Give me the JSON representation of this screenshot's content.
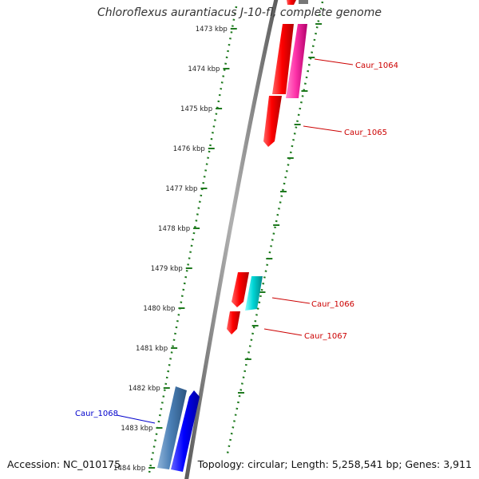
{
  "title": "Chloroflexus aurantiacus J-10-fl, complete genome",
  "footer": {
    "accession": "Accession: NC_010175",
    "summary": "Topology: circular; Length: 5,258,541 bp; Genes: 3,911"
  },
  "ticks": [
    "1473 kbp",
    "1474 kbp",
    "1475 kbp",
    "1476 kbp",
    "1477 kbp",
    "1478 kbp",
    "1479 kbp",
    "1480 kbp",
    "1481 kbp",
    "1482 kbp",
    "1483 kbp",
    "1484 kbp"
  ],
  "genes": [
    {
      "name": "Caur_1064",
      "color": "#cc0000"
    },
    {
      "name": "Caur_1065",
      "color": "#cc0000"
    },
    {
      "name": "Caur_1066",
      "color": "#cc0000"
    },
    {
      "name": "Caur_1067",
      "color": "#cc0000"
    },
    {
      "name": "Caur_1068",
      "color": "#0000cc"
    }
  ],
  "colors": {
    "backbone": "#8a8a8a",
    "ruler": "#1f7a1f",
    "forward_cds": "#ff0000",
    "forward_rna": "#ff3399",
    "reverse_rna": "#00cccc",
    "reverse_cds": "#0000ff",
    "reverse_other": "#4a7fb5"
  }
}
